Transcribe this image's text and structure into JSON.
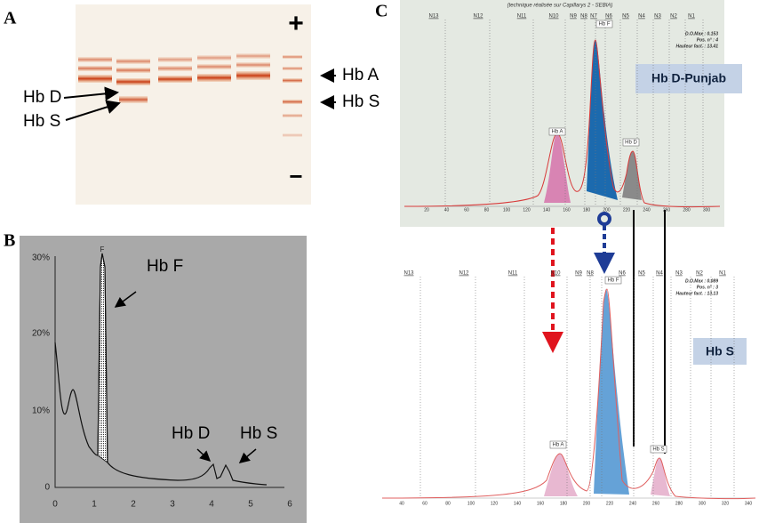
{
  "panel_a": {
    "label": "A",
    "plus": "+",
    "minus": "−",
    "left_labels": [
      "Hb D",
      "Hb S"
    ],
    "right_labels": [
      "Hb A",
      "Hb S"
    ]
  },
  "panel_b": {
    "label": "B",
    "y_tick_labels": [
      "30%",
      "20%",
      "10%",
      "0"
    ],
    "x_tick_labels": [
      "0",
      "1",
      "2",
      "3",
      "4",
      "5",
      "6"
    ],
    "peak_labels": [
      "Hb F",
      "Hb D",
      "Hb S"
    ],
    "peak_marker": "F"
  },
  "panel_c": {
    "label": "C",
    "top": {
      "subtitle": "(technique réalisée sur Capillarys 2 - SEBIA)",
      "zones": [
        "N13",
        "N12",
        "N11",
        "N10",
        "N9",
        "N8",
        "N7",
        "N6",
        "N5",
        "N4",
        "N3",
        "N2",
        "N1"
      ],
      "peak_labels": [
        "Hb A",
        "Hb F",
        "Hb D"
      ],
      "callout": "Hb D-Punjab",
      "axis_labels": [
        "20",
        "40",
        "60",
        "80",
        "100",
        "120",
        "140",
        "160",
        "180",
        "200",
        "220",
        "240",
        "260",
        "280",
        "300"
      ],
      "info": [
        "D.O.Max : 0.153",
        "Pos. n° : 4",
        "Hauteur fact. : 13.41"
      ]
    },
    "bottom": {
      "zones": [
        "N13",
        "N12",
        "N11",
        "N10",
        "N9",
        "N8",
        "N6",
        "N5",
        "N4",
        "N3",
        "N2",
        "N1"
      ],
      "peak_labels": [
        "Hb A",
        "Hb F",
        "Hb S"
      ],
      "callout": "Hb S",
      "axis_labels": [
        "40",
        "60",
        "80",
        "100",
        "120",
        "140",
        "160",
        "180",
        "200",
        "220",
        "240",
        "260",
        "280",
        "300",
        "320",
        "340"
      ],
      "info": [
        "D.O.Max : 0.089",
        "Pos. n° : 3",
        "Hauteur fact. : 13.13"
      ]
    }
  }
}
